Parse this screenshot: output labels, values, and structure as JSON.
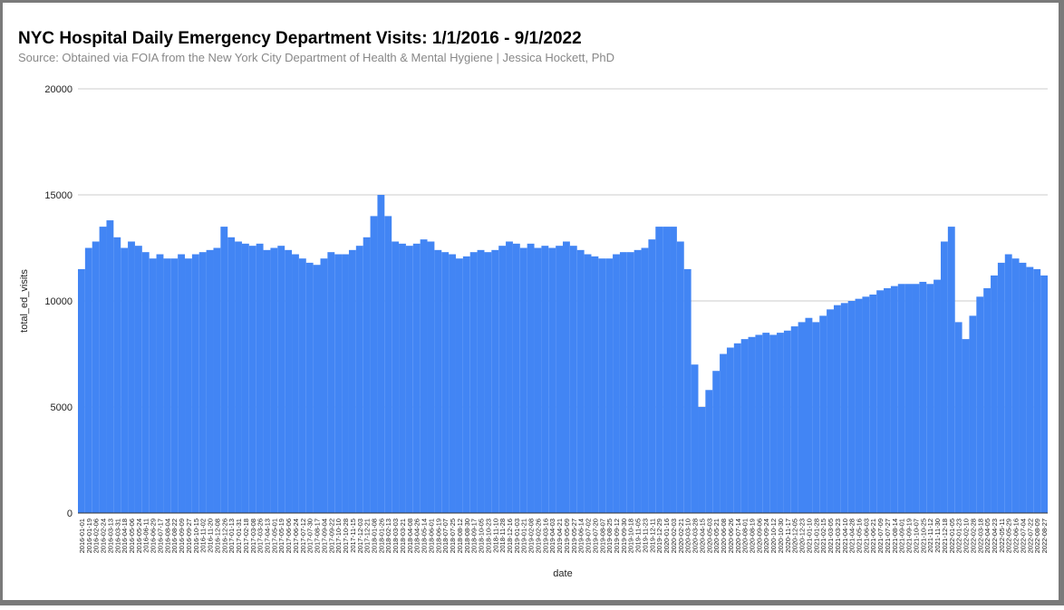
{
  "chart_data": {
    "type": "bar",
    "title": "NYC Hospital Daily Emergency Department Visits: 1/1/2016 - 9/1/2022",
    "subtitle": "Source: Obtained via FOIA from the New York City Department of Health & Mental Hygiene | Jessica Hockett, PhD",
    "x_label": "date",
    "y_label": "total_ed_visits",
    "color": "#4285f4",
    "grid": true,
    "ylim": [
      0,
      20000
    ],
    "yticks": [
      0,
      5000,
      10000,
      15000,
      20000
    ],
    "categories": [
      "2016-01-01",
      "2016-01-19",
      "2016-02-06",
      "2016-02-24",
      "2016-03-13",
      "2016-03-31",
      "2016-04-18",
      "2016-05-06",
      "2016-05-24",
      "2016-06-11",
      "2016-06-29",
      "2016-07-17",
      "2016-08-04",
      "2016-08-22",
      "2016-09-09",
      "2016-09-27",
      "2016-10-15",
      "2016-11-02",
      "2016-11-20",
      "2016-12-08",
      "2016-12-26",
      "2017-01-13",
      "2017-01-31",
      "2017-02-18",
      "2017-03-08",
      "2017-03-26",
      "2017-04-13",
      "2017-05-01",
      "2017-05-19",
      "2017-06-06",
      "2017-06-24",
      "2017-07-12",
      "2017-07-30",
      "2017-08-17",
      "2017-09-04",
      "2017-09-22",
      "2017-10-10",
      "2017-10-28",
      "2017-11-15",
      "2017-12-03",
      "2017-12-21",
      "2018-01-08",
      "2018-01-26",
      "2018-02-13",
      "2018-03-03",
      "2018-03-21",
      "2018-04-08",
      "2018-04-26",
      "2018-05-14",
      "2018-06-01",
      "2018-06-19",
      "2018-07-07",
      "2018-07-25",
      "2018-08-12",
      "2018-08-30",
      "2018-09-17",
      "2018-10-05",
      "2018-10-23",
      "2018-11-10",
      "2018-11-28",
      "2018-12-16",
      "2019-01-03",
      "2019-01-21",
      "2019-02-08",
      "2019-02-26",
      "2019-03-16",
      "2019-04-03",
      "2019-04-21",
      "2019-05-09",
      "2019-05-27",
      "2019-06-14",
      "2019-07-02",
      "2019-07-20",
      "2019-08-07",
      "2019-08-25",
      "2019-09-12",
      "2019-09-30",
      "2019-10-18",
      "2019-11-05",
      "2019-11-23",
      "2019-12-11",
      "2019-12-29",
      "2020-01-16",
      "2020-02-03",
      "2020-02-21",
      "2020-03-10",
      "2020-03-28",
      "2020-04-15",
      "2020-05-03",
      "2020-05-21",
      "2020-06-08",
      "2020-06-26",
      "2020-07-14",
      "2020-08-01",
      "2020-08-19",
      "2020-09-06",
      "2020-09-24",
      "2020-10-12",
      "2020-10-30",
      "2020-11-17",
      "2020-12-05",
      "2020-12-23",
      "2021-01-10",
      "2021-01-28",
      "2021-02-15",
      "2021-03-05",
      "2021-03-23",
      "2021-04-10",
      "2021-04-28",
      "2021-05-16",
      "2021-06-03",
      "2021-06-21",
      "2021-07-09",
      "2021-07-27",
      "2021-08-14",
      "2021-09-01",
      "2021-09-19",
      "2021-10-07",
      "2021-10-25",
      "2021-11-12",
      "2021-11-30",
      "2021-12-18",
      "2022-01-05",
      "2022-01-23",
      "2022-02-10",
      "2022-02-28",
      "2022-03-18",
      "2022-04-05",
      "2022-04-23",
      "2022-05-11",
      "2022-05-29",
      "2022-06-16",
      "2022-07-04",
      "2022-07-22",
      "2022-08-09",
      "2022-08-27"
    ],
    "values": [
      11500,
      12500,
      12800,
      13500,
      13800,
      13000,
      12500,
      12800,
      12600,
      12300,
      12000,
      12200,
      12000,
      12000,
      12200,
      12000,
      12200,
      12300,
      12400,
      12500,
      13500,
      13000,
      12800,
      12700,
      12600,
      12700,
      12400,
      12500,
      12600,
      12400,
      12200,
      12000,
      11800,
      11700,
      12000,
      12300,
      12200,
      12200,
      12400,
      12600,
      13000,
      14000,
      15000,
      14000,
      12800,
      12700,
      12600,
      12700,
      12900,
      12800,
      12400,
      12300,
      12200,
      12000,
      12100,
      12300,
      12400,
      12300,
      12400,
      12600,
      12800,
      12700,
      12500,
      12700,
      12500,
      12600,
      12500,
      12600,
      12800,
      12600,
      12400,
      12200,
      12100,
      12000,
      12000,
      12200,
      12300,
      12300,
      12400,
      12500,
      12900,
      13500,
      13500,
      13500,
      12800,
      11500,
      7000,
      5000,
      5800,
      6700,
      7500,
      7800,
      8000,
      8200,
      8300,
      8400,
      8500,
      8400,
      8500,
      8600,
      8800,
      9000,
      9200,
      9000,
      9300,
      9600,
      9800,
      9900,
      10000,
      10100,
      10200,
      10300,
      10500,
      10600,
      10700,
      10800,
      10800,
      10800,
      10900,
      10800,
      11000,
      12800,
      13500,
      9000,
      8200,
      9300,
      10200,
      10600,
      11200,
      11800,
      12200,
      12000,
      11800,
      11600,
      11500,
      11200
    ]
  }
}
